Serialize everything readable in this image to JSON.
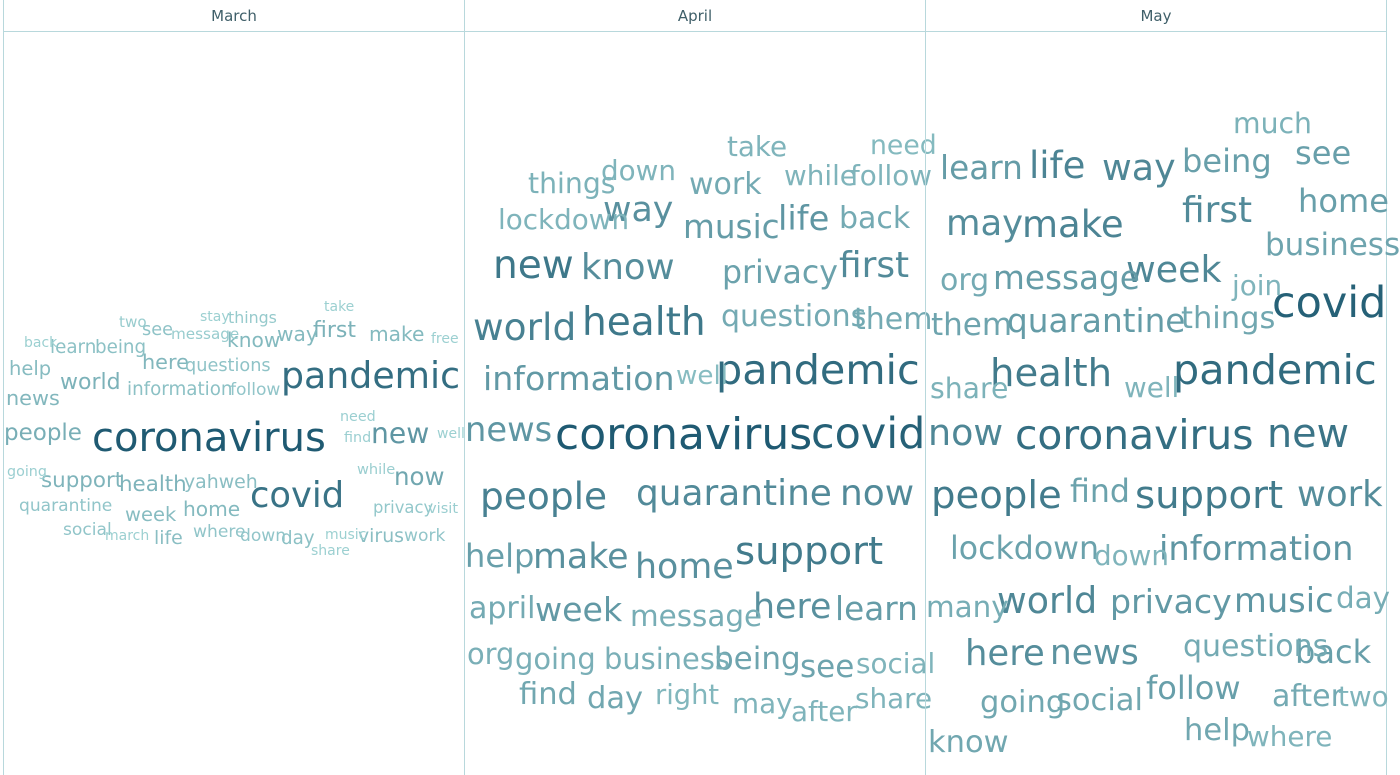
{
  "chart_data": {
    "type": "wordcloud",
    "panels": [
      {
        "month": "March",
        "words": [
          {
            "text": "coronavirus",
            "weight": 1.0
          },
          {
            "text": "pandemic",
            "weight": 0.88
          },
          {
            "text": "covid",
            "weight": 0.85
          },
          {
            "text": "new",
            "weight": 0.62
          },
          {
            "text": "now",
            "weight": 0.5
          },
          {
            "text": "people",
            "weight": 0.45
          },
          {
            "text": "first",
            "weight": 0.42
          },
          {
            "text": "world",
            "weight": 0.42
          },
          {
            "text": "health",
            "weight": 0.4
          },
          {
            "text": "support",
            "weight": 0.4
          },
          {
            "text": "here",
            "weight": 0.38
          },
          {
            "text": "news",
            "weight": 0.38
          },
          {
            "text": "way",
            "weight": 0.36
          },
          {
            "text": "make",
            "weight": 0.36
          },
          {
            "text": "know",
            "weight": 0.36
          },
          {
            "text": "home",
            "weight": 0.36
          },
          {
            "text": "help",
            "weight": 0.34
          },
          {
            "text": "week",
            "weight": 0.34
          },
          {
            "text": "virus",
            "weight": 0.32
          },
          {
            "text": "yahweh",
            "weight": 0.32
          },
          {
            "text": "learn",
            "weight": 0.3
          },
          {
            "text": "being",
            "weight": 0.3
          },
          {
            "text": "life",
            "weight": 0.32
          },
          {
            "text": "day",
            "weight": 0.3
          },
          {
            "text": "information",
            "weight": 0.3
          },
          {
            "text": "see",
            "weight": 0.28
          },
          {
            "text": "questions",
            "weight": 0.28
          },
          {
            "text": "follow",
            "weight": 0.26
          },
          {
            "text": "quarantine",
            "weight": 0.26
          },
          {
            "text": "work",
            "weight": 0.26
          },
          {
            "text": "social",
            "weight": 0.26
          },
          {
            "text": "where",
            "weight": 0.26
          },
          {
            "text": "down",
            "weight": 0.26
          },
          {
            "text": "privacy",
            "weight": 0.24
          },
          {
            "text": "things",
            "weight": 0.22
          },
          {
            "text": "two",
            "weight": 0.2
          },
          {
            "text": "message",
            "weight": 0.2
          },
          {
            "text": "visit",
            "weight": 0.18
          },
          {
            "text": "while",
            "weight": 0.18
          },
          {
            "text": "need",
            "weight": 0.17
          },
          {
            "text": "find",
            "weight": 0.17
          },
          {
            "text": "going",
            "weight": 0.17
          },
          {
            "text": "stay",
            "weight": 0.16
          },
          {
            "text": "take",
            "weight": 0.16
          },
          {
            "text": "free",
            "weight": 0.16
          },
          {
            "text": "back",
            "weight": 0.16
          },
          {
            "text": "well",
            "weight": 0.16
          },
          {
            "text": "music",
            "weight": 0.16
          },
          {
            "text": "march",
            "weight": 0.16
          },
          {
            "text": "share",
            "weight": 0.16
          }
        ]
      },
      {
        "month": "April",
        "words": [
          {
            "text": "coronavirus",
            "weight": 1.0
          },
          {
            "text": "covid",
            "weight": 0.96
          },
          {
            "text": "pandemic",
            "weight": 0.9
          },
          {
            "text": "new",
            "weight": 0.82
          },
          {
            "text": "health",
            "weight": 0.82
          },
          {
            "text": "support",
            "weight": 0.8
          },
          {
            "text": "world",
            "weight": 0.76
          },
          {
            "text": "people",
            "weight": 0.76
          },
          {
            "text": "quarantine",
            "weight": 0.7
          },
          {
            "text": "now",
            "weight": 0.7
          },
          {
            "text": "first",
            "weight": 0.7
          },
          {
            "text": "know",
            "weight": 0.68
          },
          {
            "text": "way",
            "weight": 0.66
          },
          {
            "text": "make",
            "weight": 0.66
          },
          {
            "text": "home",
            "weight": 0.66
          },
          {
            "text": "here",
            "weight": 0.66
          },
          {
            "text": "information",
            "weight": 0.6
          },
          {
            "text": "news",
            "weight": 0.62
          },
          {
            "text": "life",
            "weight": 0.62
          },
          {
            "text": "week",
            "weight": 0.6
          },
          {
            "text": "music",
            "weight": 0.58
          },
          {
            "text": "learn",
            "weight": 0.58
          },
          {
            "text": "privacy",
            "weight": 0.54
          },
          {
            "text": "help",
            "weight": 0.56
          },
          {
            "text": "being",
            "weight": 0.52
          },
          {
            "text": "see",
            "weight": 0.52
          },
          {
            "text": "day",
            "weight": 0.5
          },
          {
            "text": "find",
            "weight": 0.5
          },
          {
            "text": "questions",
            "weight": 0.48
          },
          {
            "text": "them",
            "weight": 0.48
          },
          {
            "text": "work",
            "weight": 0.48
          },
          {
            "text": "back",
            "weight": 0.48
          },
          {
            "text": "april",
            "weight": 0.48
          },
          {
            "text": "message",
            "weight": 0.46
          },
          {
            "text": "business",
            "weight": 0.44
          },
          {
            "text": "org",
            "weight": 0.44
          },
          {
            "text": "going",
            "weight": 0.44
          },
          {
            "text": "things",
            "weight": 0.42
          },
          {
            "text": "take",
            "weight": 0.4
          },
          {
            "text": "while",
            "weight": 0.4
          },
          {
            "text": "follow",
            "weight": 0.4
          },
          {
            "text": "lockdown",
            "weight": 0.4
          },
          {
            "text": "down",
            "weight": 0.4
          },
          {
            "text": "social",
            "weight": 0.4
          },
          {
            "text": "may",
            "weight": 0.4
          },
          {
            "text": "share",
            "weight": 0.4
          },
          {
            "text": "after",
            "weight": 0.4
          },
          {
            "text": "right",
            "weight": 0.38
          },
          {
            "text": "need",
            "weight": 0.36
          },
          {
            "text": "well",
            "weight": 0.34
          }
        ]
      },
      {
        "month": "May",
        "words": [
          {
            "text": "covid",
            "weight": 0.96
          },
          {
            "text": "pandemic",
            "weight": 0.9
          },
          {
            "text": "coronavirus",
            "weight": 0.88
          },
          {
            "text": "new",
            "weight": 0.84
          },
          {
            "text": "people",
            "weight": 0.8
          },
          {
            "text": "support",
            "weight": 0.8
          },
          {
            "text": "health",
            "weight": 0.8
          },
          {
            "text": "life",
            "weight": 0.74
          },
          {
            "text": "make",
            "weight": 0.74
          },
          {
            "text": "way",
            "weight": 0.72
          },
          {
            "text": "week",
            "weight": 0.72
          },
          {
            "text": "now",
            "weight": 0.72
          },
          {
            "text": "world",
            "weight": 0.72
          },
          {
            "text": "first",
            "weight": 0.7
          },
          {
            "text": "may",
            "weight": 0.68
          },
          {
            "text": "work",
            "weight": 0.68
          },
          {
            "text": "here",
            "weight": 0.68
          },
          {
            "text": "news",
            "weight": 0.64
          },
          {
            "text": "information",
            "weight": 0.62
          },
          {
            "text": "music",
            "weight": 0.62
          },
          {
            "text": "privacy",
            "weight": 0.6
          },
          {
            "text": "quarantine",
            "weight": 0.58
          },
          {
            "text": "message",
            "weight": 0.58
          },
          {
            "text": "learn",
            "weight": 0.58
          },
          {
            "text": "being",
            "weight": 0.56
          },
          {
            "text": "see",
            "weight": 0.56
          },
          {
            "text": "home",
            "weight": 0.56
          },
          {
            "text": "lockdown",
            "weight": 0.54
          },
          {
            "text": "find",
            "weight": 0.54
          },
          {
            "text": "back",
            "weight": 0.56
          },
          {
            "text": "follow",
            "weight": 0.56
          },
          {
            "text": "business",
            "weight": 0.52
          },
          {
            "text": "them",
            "weight": 0.52
          },
          {
            "text": "things",
            "weight": 0.5
          },
          {
            "text": "social",
            "weight": 0.5
          },
          {
            "text": "going",
            "weight": 0.5
          },
          {
            "text": "org",
            "weight": 0.48
          },
          {
            "text": "questions",
            "weight": 0.48
          },
          {
            "text": "after",
            "weight": 0.48
          },
          {
            "text": "help",
            "weight": 0.5
          },
          {
            "text": "know",
            "weight": 0.5
          },
          {
            "text": "many",
            "weight": 0.46
          },
          {
            "text": "day",
            "weight": 0.46
          },
          {
            "text": "much",
            "weight": 0.42
          },
          {
            "text": "share",
            "weight": 0.42
          },
          {
            "text": "well",
            "weight": 0.4
          },
          {
            "text": "join",
            "weight": 0.4
          },
          {
            "text": "down",
            "weight": 0.4
          },
          {
            "text": "two",
            "weight": 0.4
          },
          {
            "text": "where",
            "weight": 0.4
          }
        ]
      }
    ],
    "colors": {
      "dark": "#1f5a72",
      "light": "#a9dcdb"
    },
    "grid": false,
    "legend": "none"
  }
}
